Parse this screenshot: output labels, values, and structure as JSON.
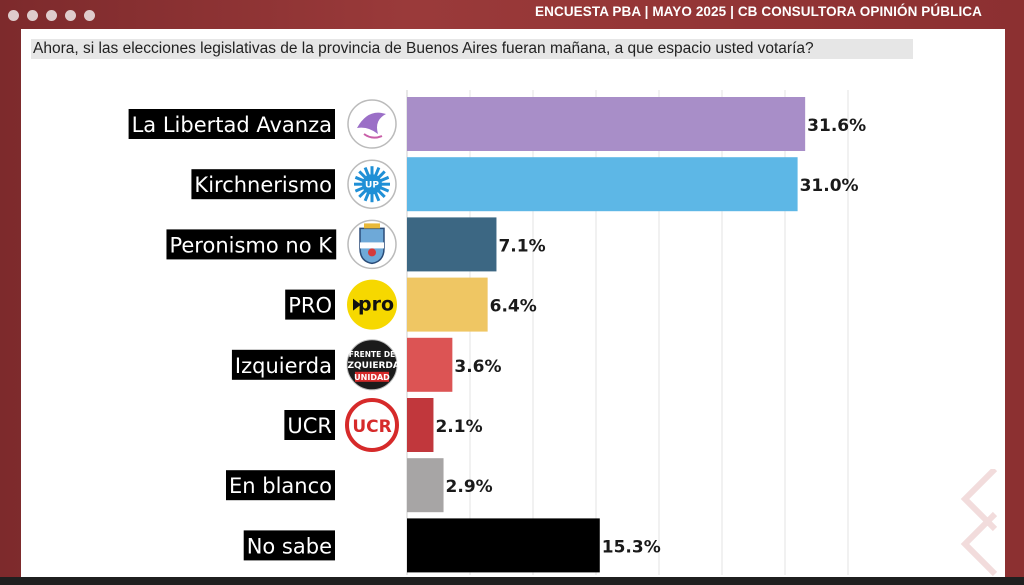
{
  "header": {
    "title": "ENCUESTA PBA | MAYO 2025 | CB CONSULTORA OPINIÓN PÚBLICA"
  },
  "chart_data": {
    "type": "bar",
    "orientation": "horizontal",
    "title": "Ahora, si las elecciones legislativas de la provincia de Buenos Aires fueran mañana, a que espacio usted votaría?",
    "categories": [
      "La Libertad Avanza",
      "Kirchnerismo",
      "Peronismo no K",
      "PRO",
      "Izquierda",
      "UCR",
      "En blanco",
      "No sabe"
    ],
    "values": [
      31.6,
      31.0,
      7.1,
      6.4,
      3.6,
      2.1,
      2.9,
      15.3
    ],
    "value_labels": [
      "31.6%",
      "31.0%",
      "7.1%",
      "6.4%",
      "3.6%",
      "2.1%",
      "2.9%",
      "15.3%"
    ],
    "colors": [
      "#a88ec8",
      "#5db7e6",
      "#3c6783",
      "#efc663",
      "#dc5454",
      "#c1373c",
      "#a7a5a5",
      "#000000"
    ],
    "logos": [
      {
        "name": "llas-logo",
        "text": ""
      },
      {
        "name": "sun-logo",
        "text": "UP"
      },
      {
        "name": "shield-logo",
        "text": ""
      },
      {
        "name": "pro-logo",
        "text": "pro"
      },
      {
        "name": "fit-logo",
        "text": "FRENTE DE IZQUIERDA UNIDAD"
      },
      {
        "name": "ucr-logo",
        "text": "UCR"
      },
      null,
      null
    ],
    "xlim": [
      0,
      35
    ],
    "grid": true
  }
}
